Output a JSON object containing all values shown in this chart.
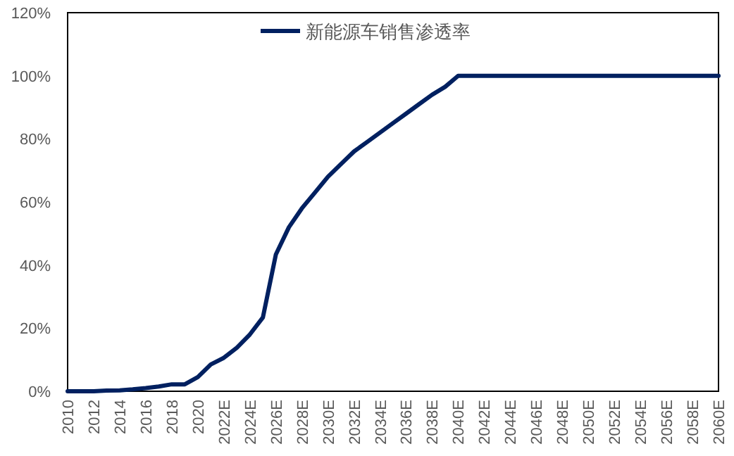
{
  "chart_data": {
    "type": "line",
    "categories": [
      "2010",
      null,
      "2012",
      null,
      "2014",
      null,
      "2016",
      null,
      "2018",
      null,
      "2020",
      null,
      "2022E",
      null,
      "2024E",
      null,
      "2026E",
      null,
      "2028E",
      null,
      "2030E",
      null,
      "2032E",
      null,
      "2034E",
      null,
      "2036E",
      null,
      "2038E",
      null,
      "2040E",
      null,
      "2042E",
      null,
      "2044E",
      null,
      "2046E",
      null,
      "2048E",
      null,
      "2050E",
      null,
      "2052E",
      null,
      "2054E",
      null,
      "2056E",
      null,
      "2058E",
      null,
      "2060E"
    ],
    "series": [
      {
        "name": "新能源车销售渗透率",
        "color": "#002060",
        "values": [
          0,
          0,
          0,
          0.2,
          0.3,
          0.6,
          1,
          1.5,
          2.2,
          2.2,
          4.5,
          8.5,
          10.6,
          13.8,
          18,
          23.4,
          43.4,
          52,
          58,
          63,
          68,
          72,
          76,
          79,
          82,
          85,
          88,
          91,
          94,
          96.5,
          100,
          100,
          100,
          100,
          100,
          100,
          100,
          100,
          100,
          100,
          100,
          100,
          100,
          100,
          100,
          100,
          100,
          100,
          100,
          100,
          100
        ]
      }
    ],
    "ylim": [
      0,
      120
    ],
    "yticks": [
      {
        "value": 0,
        "label": "0%"
      },
      {
        "value": 20,
        "label": "20%"
      },
      {
        "value": 40,
        "label": "40%"
      },
      {
        "value": 60,
        "label": "60%"
      },
      {
        "value": 80,
        "label": "80%"
      },
      {
        "value": 100,
        "label": "100%"
      },
      {
        "value": 120,
        "label": "120%"
      }
    ],
    "legend": "top",
    "marker": "none",
    "line_style": "solid"
  }
}
